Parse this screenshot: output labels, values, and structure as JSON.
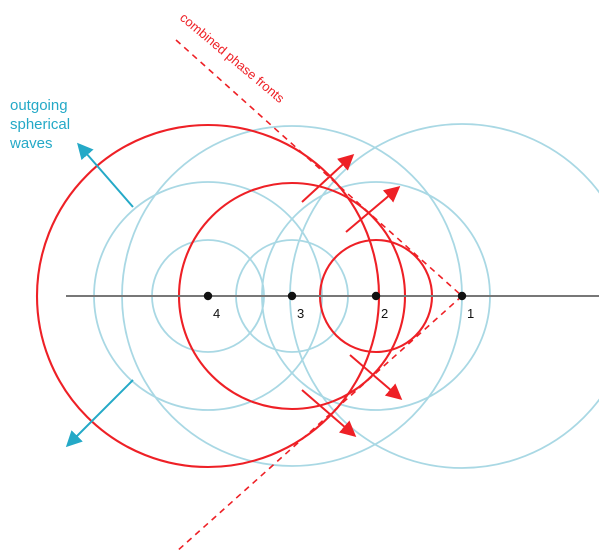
{
  "labels": {
    "outgoing": [
      "outgoing",
      "spherical",
      "waves"
    ],
    "phase_fronts": "combined phase fronts"
  },
  "sources": [
    "4",
    "3",
    "2",
    "1"
  ],
  "colors": {
    "wave": "#a9d8e4",
    "front": "#ee2026",
    "outgoing_arrow": "#24a9c7",
    "axis": "#777777",
    "source_point": "#111111",
    "label_text": "#111111"
  }
}
